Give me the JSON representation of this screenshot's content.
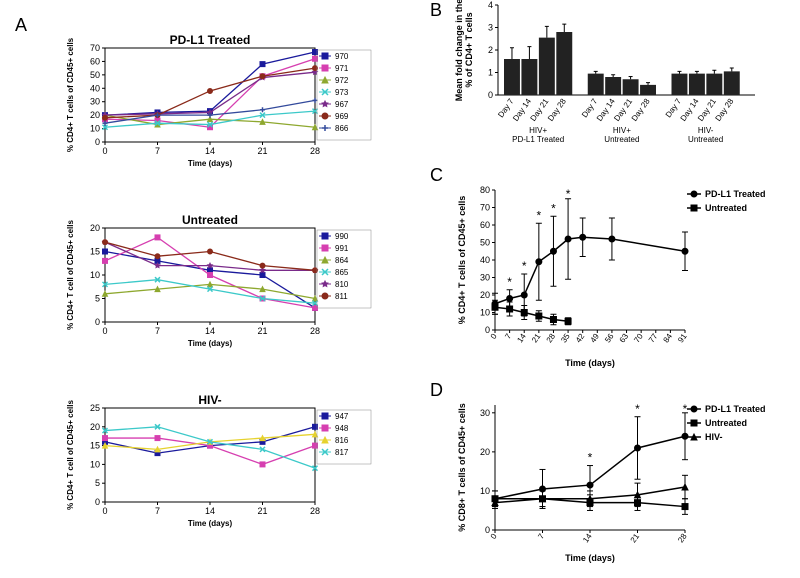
{
  "labels": {
    "A": "A",
    "B": "B",
    "C": "C",
    "D": "D"
  },
  "panelA": {
    "charts": [
      {
        "title": "PD-L1 Treated",
        "ylabel": "% CD4+ T cells of CD45+ cells",
        "xlabel": "Time (days)",
        "xTicks": [
          0,
          7,
          14,
          21,
          28
        ],
        "yTicks": [
          0,
          10,
          20,
          30,
          40,
          50,
          60,
          70
        ],
        "ylim": [
          0,
          70
        ],
        "series": [
          {
            "id": "970",
            "color": "#1a1a9c",
            "marker": "square",
            "vals": {
              "0": 20,
              "7": 22,
              "14": 23,
              "21": 58,
              "28": 67
            }
          },
          {
            "id": "971",
            "color": "#d63fb0",
            "marker": "square",
            "vals": {
              "0": 17,
              "7": 16,
              "14": 11,
              "21": 49,
              "28": 62
            }
          },
          {
            "id": "972",
            "color": "#8ea82f",
            "marker": "triangle",
            "vals": {
              "0": 20,
              "7": 13,
              "14": 17,
              "21": 15,
              "28": 11
            }
          },
          {
            "id": "973",
            "color": "#3cc9c9",
            "marker": "x",
            "vals": {
              "0": 11,
              "7": 14,
              "14": 13,
              "21": 20,
              "28": 23
            }
          },
          {
            "id": "967",
            "color": "#7a2b8a",
            "marker": "star",
            "vals": {
              "0": 20,
              "7": 21,
              "14": 22,
              "21": 48,
              "28": 52
            }
          },
          {
            "id": "969",
            "color": "#8a2a1a",
            "marker": "circle",
            "vals": {
              "0": 18,
              "7": 20,
              "14": 38,
              "21": 49,
              "28": 55
            }
          },
          {
            "id": "866",
            "color": "#334a9c",
            "marker": "plus",
            "vals": {
              "0": 14,
              "7": 20,
              "14": 20,
              "21": 24,
              "28": 31
            }
          }
        ],
        "axisFont": 8,
        "labelFont": 8
      },
      {
        "title": "Untreated",
        "ylabel": "% CD4+ T cell of CD45+ cells",
        "xlabel": "Time (days)",
        "xTicks": [
          0,
          7,
          14,
          21,
          28
        ],
        "yTicks": [
          0,
          5,
          10,
          15,
          20
        ],
        "ylim": [
          0,
          20
        ],
        "series": [
          {
            "id": "990",
            "color": "#1a1a9c",
            "marker": "square",
            "vals": {
              "0": 15,
              "7": 13,
              "14": 11,
              "21": 10,
              "28": 3
            }
          },
          {
            "id": "991",
            "color": "#d63fb0",
            "marker": "square",
            "vals": {
              "0": 13,
              "7": 18,
              "14": 10,
              "21": 5,
              "28": 3
            }
          },
          {
            "id": "864",
            "color": "#8ea82f",
            "marker": "triangle",
            "vals": {
              "0": 6,
              "7": 7,
              "14": 8,
              "21": 7,
              "28": 5
            }
          },
          {
            "id": "865",
            "color": "#3cc9c9",
            "marker": "x",
            "vals": {
              "0": 8,
              "7": 9,
              "14": 7,
              "21": 5,
              "28": 4
            }
          },
          {
            "id": "810",
            "color": "#7a2b8a",
            "marker": "star",
            "vals": {
              "0": 17,
              "7": 12,
              "14": 12,
              "21": 11,
              "28": 11
            }
          },
          {
            "id": "811",
            "color": "#8a2a1a",
            "marker": "circle",
            "vals": {
              "0": 17,
              "7": 14,
              "14": 15,
              "21": 12,
              "28": 11
            }
          }
        ],
        "axisFont": 8,
        "labelFont": 8
      },
      {
        "title": "HIV-",
        "ylabel": "% CD4+ T cell of CD45+ cells",
        "xlabel": "Time (days)",
        "xTicks": [
          0,
          7,
          14,
          21,
          28
        ],
        "yTicks": [
          0,
          5,
          10,
          15,
          20,
          25
        ],
        "ylim": [
          0,
          25
        ],
        "series": [
          {
            "id": "947",
            "color": "#1a1a9c",
            "marker": "square",
            "vals": {
              "0": 16,
              "7": 13,
              "14": 15,
              "21": 16,
              "28": 20
            }
          },
          {
            "id": "948",
            "color": "#d63fb0",
            "marker": "square",
            "vals": {
              "0": 17,
              "7": 17,
              "14": 15,
              "21": 10,
              "28": 15
            }
          },
          {
            "id": "816",
            "color": "#e6d22e",
            "marker": "triangle",
            "vals": {
              "0": 15,
              "7": 14,
              "14": 16,
              "21": 17,
              "28": 18
            }
          },
          {
            "id": "817",
            "color": "#3cc9c9",
            "marker": "x",
            "vals": {
              "0": 19,
              "7": 20,
              "14": 16,
              "21": 14,
              "28": 9
            }
          }
        ],
        "axisFont": 8,
        "labelFont": 8
      }
    ]
  },
  "panelB": {
    "ylabel": "Mean fold change in the\n% of CD4+ T cells",
    "ylim": [
      0,
      4
    ],
    "yTicks": [
      0,
      1,
      2,
      3,
      4
    ],
    "groups": [
      {
        "label": "HIV+\nPD-L1 Treated",
        "bars": [
          {
            "x": "Day 7",
            "v": 1.6,
            "e": 0.5
          },
          {
            "x": "Day 14",
            "v": 1.6,
            "e": 0.55
          },
          {
            "x": "Day 21",
            "v": 2.55,
            "e": 0.5
          },
          {
            "x": "Day 28",
            "v": 2.8,
            "e": 0.35
          }
        ]
      },
      {
        "label": "HIV+\nUntreated",
        "bars": [
          {
            "x": "Day 7",
            "v": 0.95,
            "e": 0.1
          },
          {
            "x": "Day 14",
            "v": 0.8,
            "e": 0.1
          },
          {
            "x": "Day 21",
            "v": 0.7,
            "e": 0.12
          },
          {
            "x": "Day 28",
            "v": 0.45,
            "e": 0.1
          }
        ]
      },
      {
        "label": "HIV-\nUntreated",
        "bars": [
          {
            "x": "Day 7",
            "v": 0.95,
            "e": 0.1
          },
          {
            "x": "Day 14",
            "v": 0.95,
            "e": 0.1
          },
          {
            "x": "Day 21",
            "v": 0.95,
            "e": 0.15
          },
          {
            "x": "Day 28",
            "v": 1.05,
            "e": 0.15
          }
        ]
      }
    ],
    "barColor": "#1a1a1a",
    "axisFont": 8
  },
  "panelC": {
    "ylabel": "% CD4+ T cells of CD45+ cells",
    "xlabel": "Time (days)",
    "xTicks": [
      0,
      7,
      14,
      21,
      28,
      35,
      42,
      49,
      56,
      63,
      70,
      77,
      84,
      91
    ],
    "yTicks": [
      0,
      10,
      20,
      30,
      40,
      50,
      60,
      70,
      80
    ],
    "ylim": [
      0,
      80
    ],
    "series": [
      {
        "id": "PD-L1 Treated",
        "marker": "circle",
        "color": "#000",
        "vals": {
          "0": 15,
          "7": 18,
          "14": 20,
          "21": 39,
          "28": 45,
          "35": 52,
          "42": 53,
          "56": 52,
          "91": 45
        },
        "errs": {
          "0": 6,
          "7": 5,
          "14": 12,
          "21": 22,
          "28": 20,
          "35": 23,
          "42": 11,
          "56": 12,
          "91": 11
        }
      },
      {
        "id": "Untreated",
        "marker": "square",
        "color": "#000",
        "vals": {
          "0": 13,
          "7": 12,
          "14": 10,
          "21": 8,
          "28": 6,
          "35": 5
        },
        "errs": {
          "0": 4,
          "7": 4,
          "14": 4,
          "21": 3,
          "28": 3,
          "35": 2
        }
      }
    ],
    "stars": [
      7,
      14,
      21,
      28,
      35
    ],
    "axisFont": 9
  },
  "panelD": {
    "ylabel": "% CD8+ T cells of CD45+ cells",
    "xlabel": "Time (days)",
    "xTicks": [
      0,
      7,
      14,
      21,
      28
    ],
    "yTicks": [
      0,
      10,
      20,
      30
    ],
    "ylim": [
      0,
      32
    ],
    "series": [
      {
        "id": "PD-L1 Treated",
        "marker": "circle",
        "color": "#000",
        "vals": {
          "0": 8,
          "7": 10.5,
          "14": 11.5,
          "21": 21,
          "28": 24
        },
        "errs": {
          "0": 2,
          "7": 5,
          "14": 5,
          "21": 8,
          "28": 6
        }
      },
      {
        "id": "Untreated",
        "marker": "square",
        "color": "#000",
        "vals": {
          "0": 8,
          "7": 8,
          "14": 7,
          "21": 7,
          "28": 6
        },
        "errs": {
          "0": 2,
          "7": 2,
          "14": 2,
          "21": 2,
          "28": 2
        }
      },
      {
        "id": "HIV-",
        "marker": "triangle",
        "color": "#000",
        "vals": {
          "0": 7,
          "7": 8,
          "14": 8,
          "21": 9,
          "28": 11
        },
        "errs": {
          "0": 1.5,
          "7": 2,
          "14": 2,
          "21": 3,
          "28": 3
        }
      }
    ],
    "stars": [
      14,
      21,
      28
    ],
    "axisFont": 9
  }
}
